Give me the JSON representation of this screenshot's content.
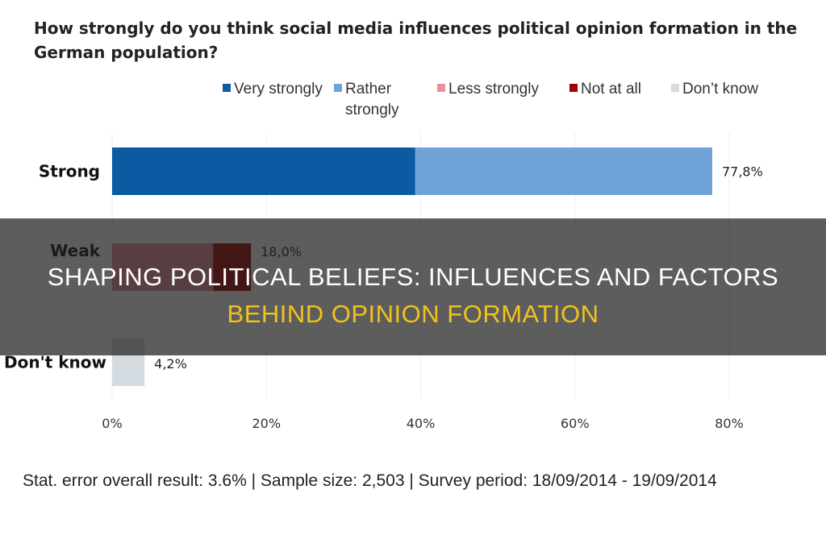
{
  "chart_data": {
    "type": "bar",
    "orientation": "horizontal",
    "stacked": true,
    "title": "How strongly do you think social media influences political opinion formation in the German population?",
    "categories": [
      "Strong",
      "Weak",
      "Don't know"
    ],
    "series": [
      {
        "name": "Very strongly",
        "color": "#0b5aa2",
        "values": [
          39.3,
          0,
          0
        ]
      },
      {
        "name": "Rather strongly",
        "color": "#6fa3d8",
        "values": [
          38.5,
          0,
          0
        ]
      },
      {
        "name": "Less strongly",
        "color": "#e8909a",
        "values": [
          0,
          13.1,
          0
        ]
      },
      {
        "name": "Not at all",
        "color": "#a30000",
        "values": [
          0,
          4.9,
          0
        ]
      },
      {
        "name": "Don’t know",
        "color": "#d3dbe0",
        "values": [
          0,
          0,
          4.2
        ]
      }
    ],
    "data_labels": [
      "77,8%",
      "18,0%",
      "4,2%"
    ],
    "xlim": [
      0,
      80
    ],
    "xticks": [
      "0%",
      "20%",
      "40%",
      "60%",
      "80%"
    ],
    "grid": true,
    "legend": "top"
  },
  "footer": "Stat. error overall result: 3.6% | Sample size: 2,503 | Survey period: 18/09/2014 - 19/09/2014",
  "overlay": {
    "line1": "SHAPING POLITICAL BELIEFS: INFLUENCES AND FACTORS",
    "line2": "BEHIND OPINION FORMATION"
  }
}
